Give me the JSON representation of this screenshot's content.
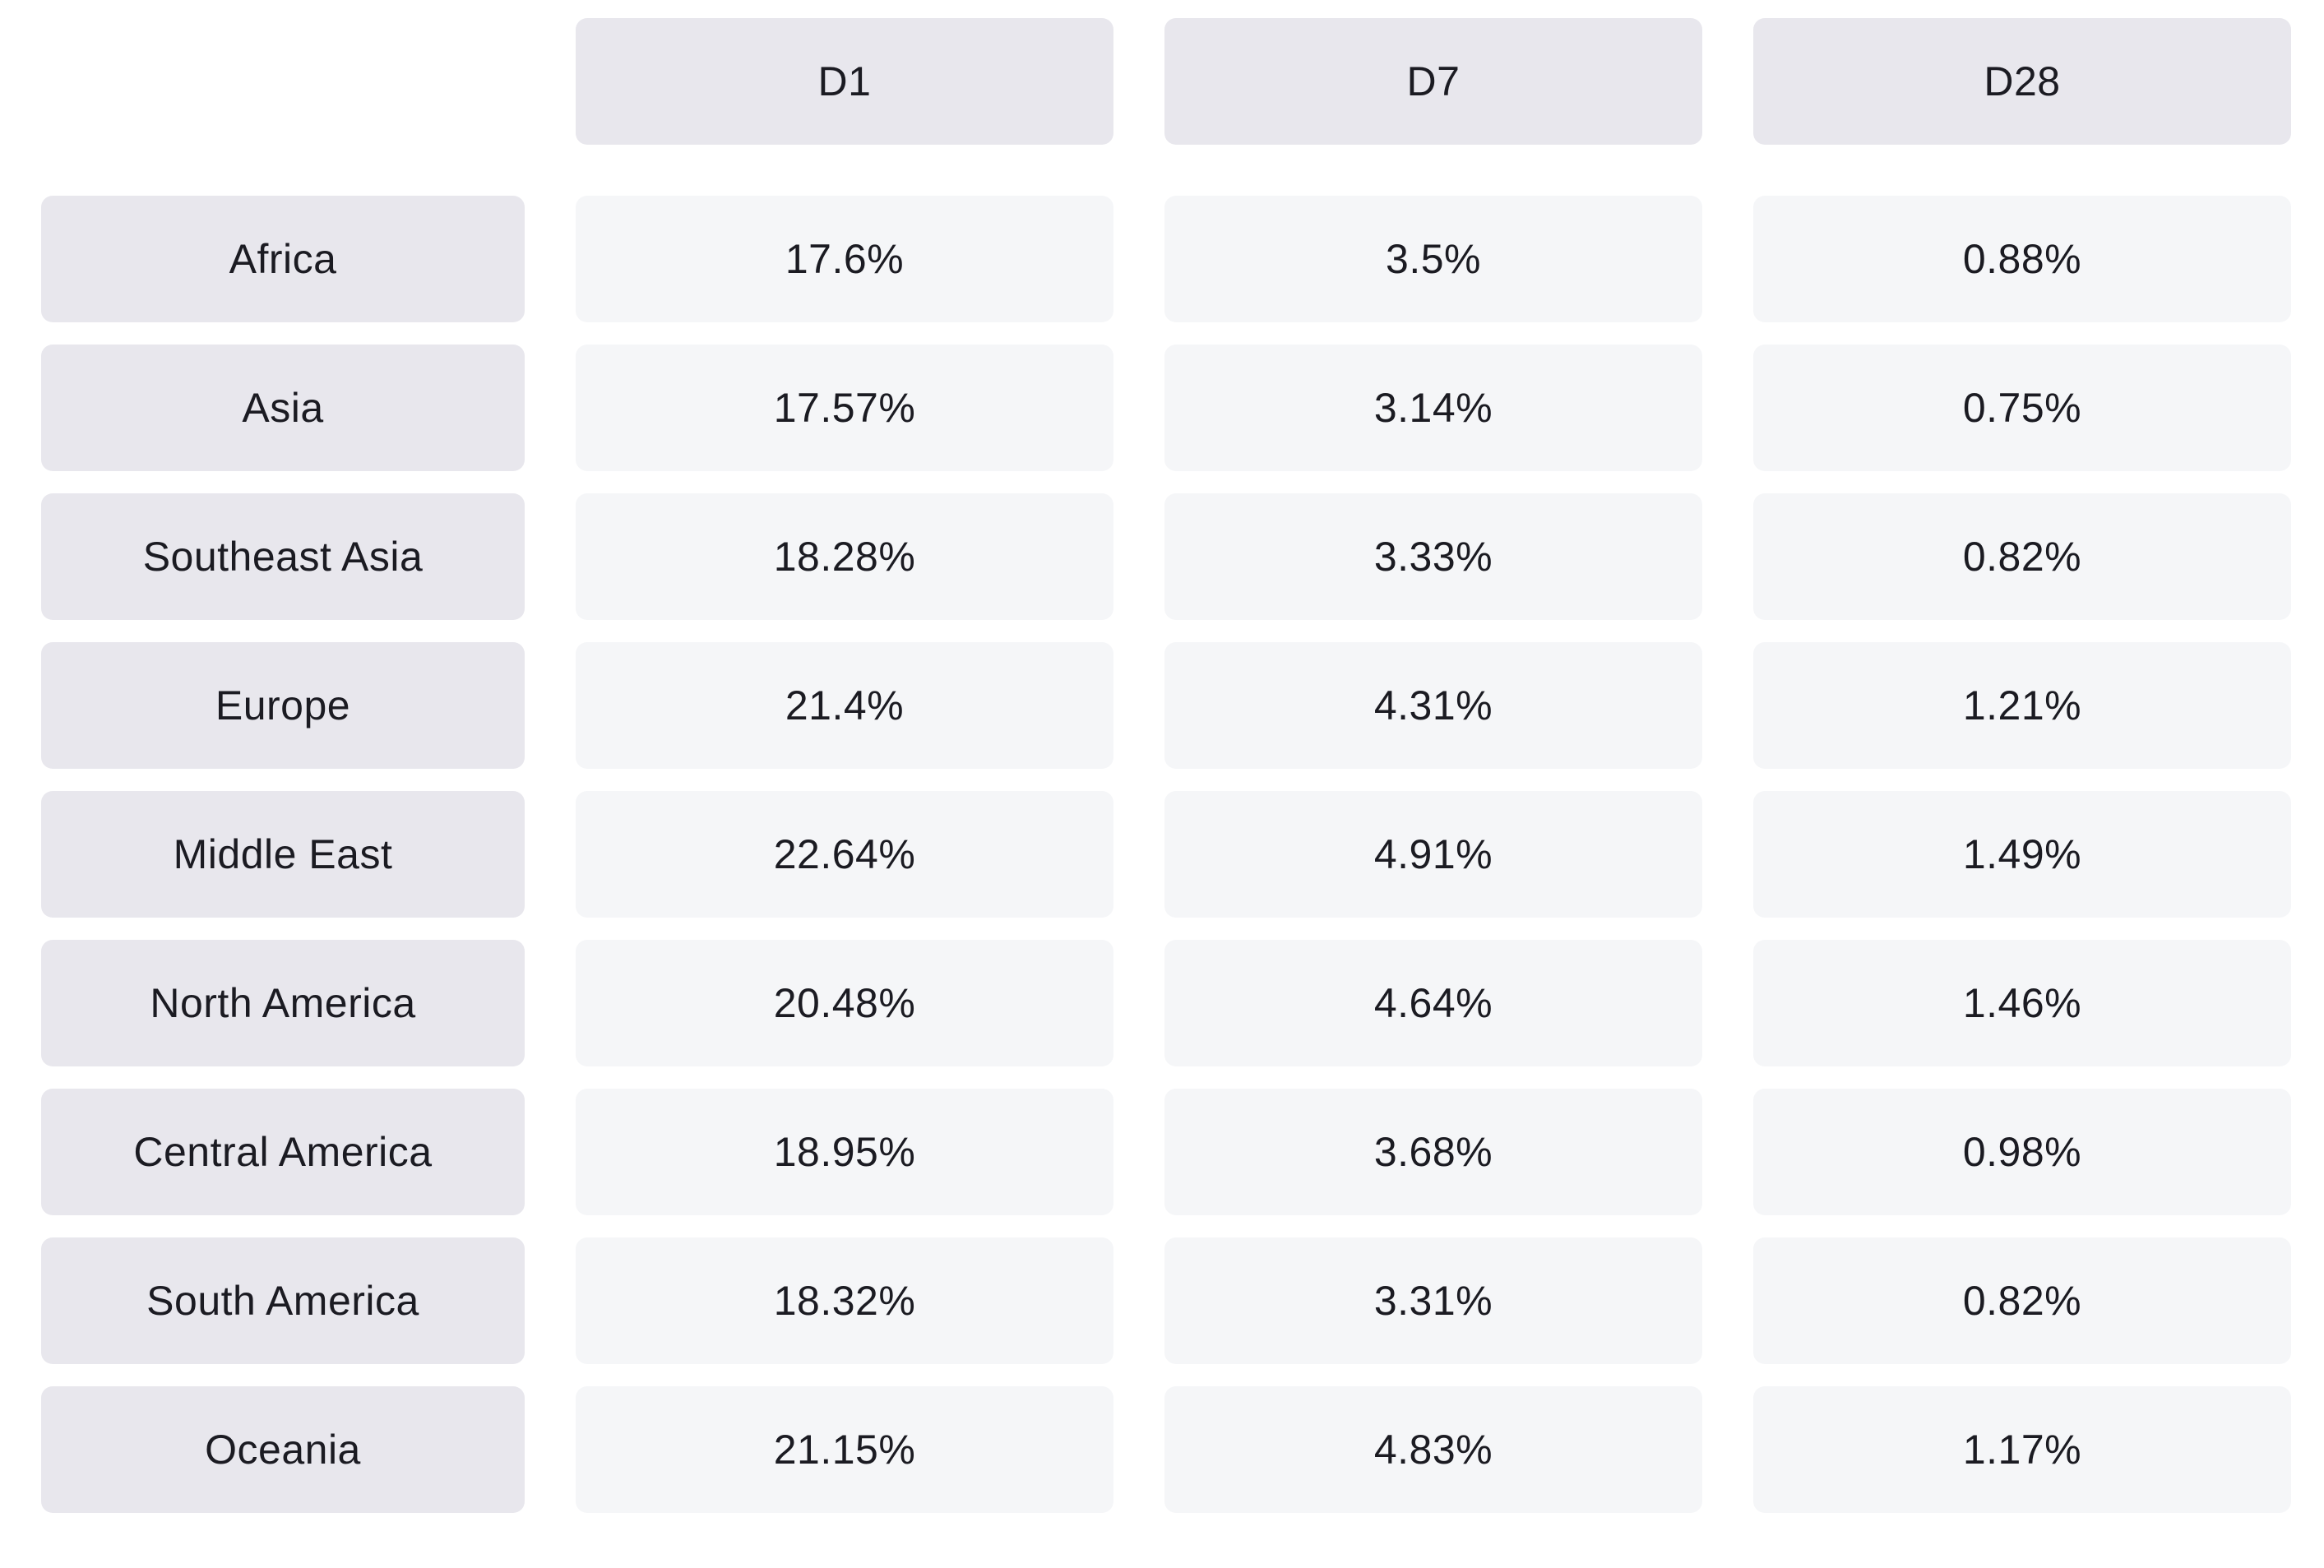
{
  "table": {
    "columns": [
      "D1",
      "D7",
      "D28"
    ],
    "rows": [
      {
        "label": "Africa",
        "values": [
          "17.6%",
          "3.5%",
          "0.88%"
        ]
      },
      {
        "label": "Asia",
        "values": [
          "17.57%",
          "3.14%",
          "0.75%"
        ]
      },
      {
        "label": "Southeast Asia",
        "values": [
          "18.28%",
          "3.33%",
          "0.82%"
        ]
      },
      {
        "label": "Europe",
        "values": [
          "21.4%",
          "4.31%",
          "1.21%"
        ]
      },
      {
        "label": "Middle East",
        "values": [
          "22.64%",
          "4.91%",
          "1.49%"
        ]
      },
      {
        "label": "North America",
        "values": [
          "20.48%",
          "4.64%",
          "1.46%"
        ]
      },
      {
        "label": "Central America",
        "values": [
          "18.95%",
          "3.68%",
          "0.98%"
        ]
      },
      {
        "label": "South America",
        "values": [
          "18.32%",
          "3.31%",
          "0.82%"
        ]
      },
      {
        "label": "Oceania",
        "values": [
          "21.15%",
          "4.83%",
          "1.17%"
        ]
      }
    ]
  },
  "colors": {
    "header_bg": "#e8e7ed",
    "cell_bg": "#f5f6f8",
    "text": "#1b1b22"
  }
}
